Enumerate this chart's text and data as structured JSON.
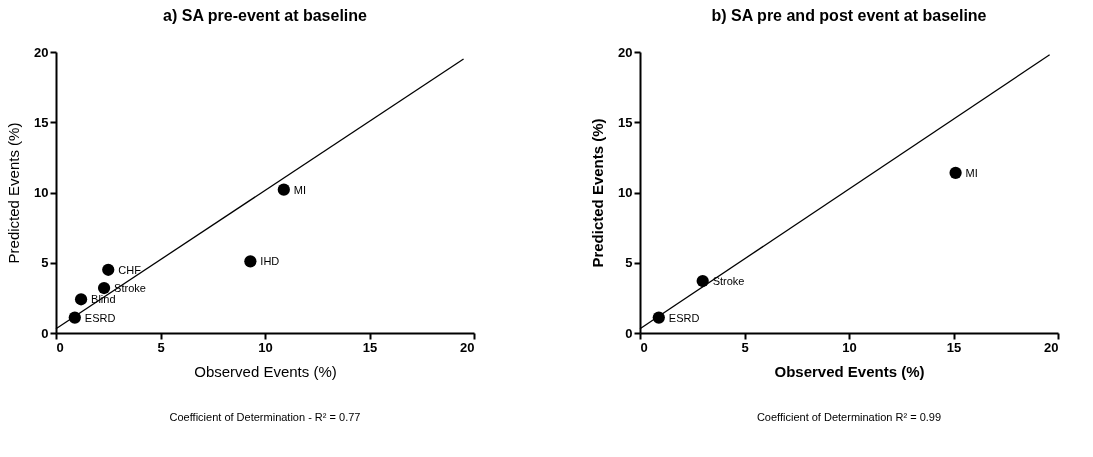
{
  "chart_data": [
    {
      "type": "scatter",
      "title": "a) SA pre-event at baseline",
      "xlabel": "Observed Events (%)",
      "ylabel": "Predicted Events (%)",
      "x": [
        10.9,
        9.3,
        2.5,
        2.3,
        1.2,
        0.9
      ],
      "series": [
        {
          "color": "#000000",
          "marker": "circle",
          "values": [
            10.2,
            5.1,
            4.5,
            3.2,
            2.4,
            1.1
          ]
        },
        {
          "type": "line",
          "color": "#000000",
          "marker": "none",
          "x": [
            0,
            19.5
          ],
          "values": [
            0.3,
            19.5
          ]
        }
      ],
      "xlim": [
        0,
        20
      ],
      "ylim": [
        0,
        20
      ],
      "xticks": [
        0,
        5,
        10,
        15,
        20
      ],
      "yticks": [
        0,
        5,
        10,
        15,
        20
      ],
      "grid": false,
      "annotations": [
        {
          "text": "MI",
          "x": 10.9,
          "y": 10.2
        },
        {
          "text": "IHD",
          "x": 9.3,
          "y": 5.1
        },
        {
          "text": "CHF",
          "x": 2.5,
          "y": 4.5
        },
        {
          "text": "Stroke",
          "x": 2.3,
          "y": 3.2
        },
        {
          "text": "Blind",
          "x": 1.2,
          "y": 2.4
        },
        {
          "text": "ESRD",
          "x": 0.9,
          "y": 1.1
        },
        "Coefficient of Determination - R² = 0.77"
      ]
    },
    {
      "type": "scatter",
      "title": "b) SA pre and post event at baseline",
      "xlabel": "Observed Events (%)",
      "ylabel": "Predicted Events (%)",
      "x": [
        15.1,
        3.0,
        0.9
      ],
      "series": [
        {
          "color": "#000000",
          "marker": "circle",
          "values": [
            11.4,
            3.7,
            1.1
          ]
        },
        {
          "type": "line",
          "color": "#000000",
          "marker": "none",
          "x": [
            0,
            19.6
          ],
          "values": [
            0.3,
            19.8
          ]
        }
      ],
      "xlim": [
        0,
        20
      ],
      "ylim": [
        0,
        20
      ],
      "xticks": [
        0,
        5,
        10,
        15,
        20
      ],
      "yticks": [
        0,
        5,
        10,
        15,
        20
      ],
      "grid": false,
      "annotations": [
        {
          "text": "MI",
          "x": 15.1,
          "y": 11.4
        },
        {
          "text": "Stroke",
          "x": 3.0,
          "y": 3.7
        },
        {
          "text": "ESRD",
          "x": 0.9,
          "y": 1.1
        },
        "Coefficient of Determination R² = 0.99"
      ]
    }
  ]
}
